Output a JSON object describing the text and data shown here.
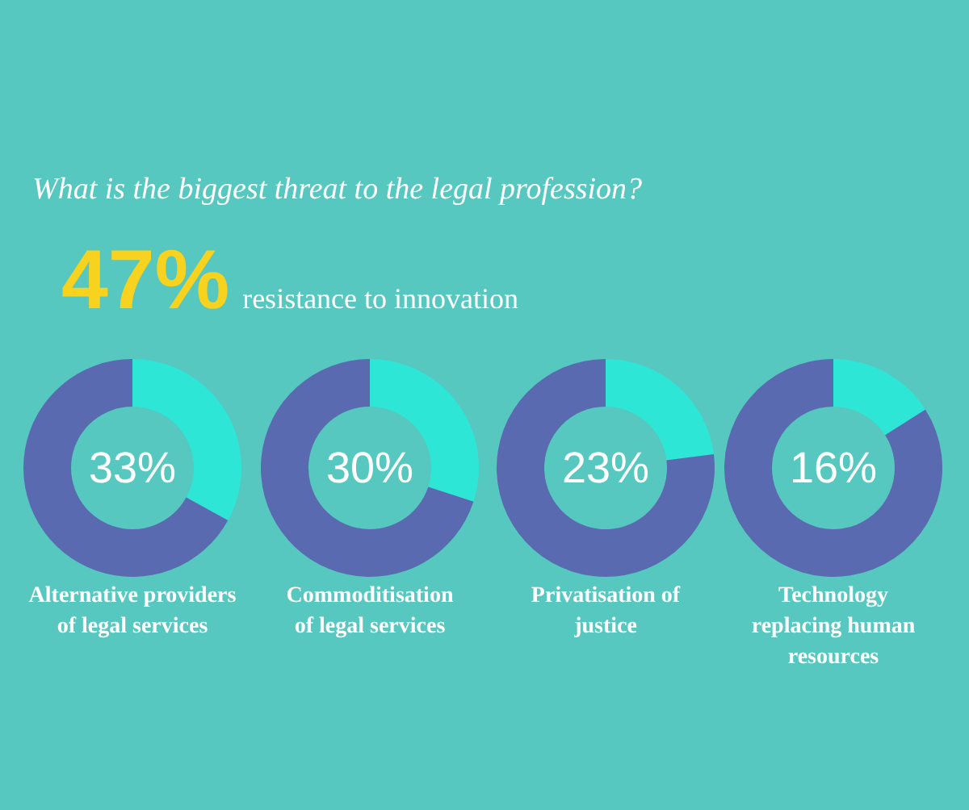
{
  "chart_data": [
    {
      "type": "other",
      "title": "What is the biggest threat to the legal profession?",
      "annotations": [
        "47%",
        "resistance to innovation"
      ]
    },
    {
      "type": "donut",
      "title": "Alternative providers of legal services",
      "categories": [
        null,
        null
      ],
      "values": [
        33,
        67
      ],
      "colors": [
        "#2ee6d6",
        "#5a6ab0"
      ],
      "annotations": [
        "33%"
      ]
    },
    {
      "type": "donut",
      "title": "Commoditisation of legal services",
      "categories": [
        null,
        null
      ],
      "values": [
        30,
        70
      ],
      "colors": [
        "#2ee6d6",
        "#5a6ab0"
      ],
      "annotations": [
        "30%"
      ]
    },
    {
      "type": "donut",
      "title": "Privatisation of justice",
      "categories": [
        null,
        null
      ],
      "values": [
        23,
        77
      ],
      "colors": [
        "#2ee6d6",
        "#5a6ab0"
      ],
      "annotations": [
        "23%"
      ]
    },
    {
      "type": "donut",
      "title": "Technology replacing human resources",
      "categories": [
        null,
        null
      ],
      "values": [
        16,
        84
      ],
      "colors": [
        "#2ee6d6",
        "#5a6ab0"
      ],
      "annotations": [
        "16%"
      ]
    }
  ]
}
